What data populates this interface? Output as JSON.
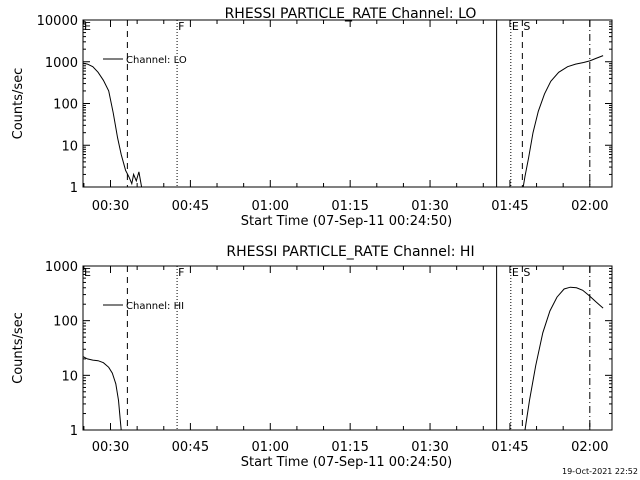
{
  "footer": {
    "timestamp": "19-Oct-2021 22:52"
  },
  "chart_data": [
    {
      "type": "line",
      "title": "RHESSI PARTICLE_RATE Channel: LO",
      "xlabel": "Start Time (07-Sep-11 00:24:50)",
      "ylabel": "Counts/sec",
      "yscale": "log",
      "ylim": [
        1,
        10000
      ],
      "xlim": [
        "00:24:50",
        "02:04:10"
      ],
      "xticks": [
        "00:30",
        "00:45",
        "01:00",
        "01:15",
        "01:30",
        "01:45",
        "02:00"
      ],
      "yticks": [
        "1",
        "10",
        "100",
        "1000",
        "10000"
      ],
      "legend": {
        "label": "Channel: LO",
        "placement": "top-left"
      },
      "markers": [
        {
          "label": "E",
          "time": "00:24:50",
          "style": "dashed"
        },
        {
          "label": "",
          "time": "00:33:10",
          "style": "dashed"
        },
        {
          "label": "F",
          "time": "00:42:30",
          "style": "dotted"
        },
        {
          "label": "",
          "time": "01:42:30",
          "style": "solid"
        },
        {
          "label": "E",
          "time": "01:45:10",
          "style": "dotted"
        },
        {
          "label": "S",
          "time": "01:47:20",
          "style": "dashed"
        },
        {
          "label": "",
          "time": "02:00:00",
          "style": "dashdot"
        }
      ],
      "series": [
        {
          "segments": [
            [
              [
                "00:24:50",
                930
              ],
              [
                "00:25:40",
                880
              ],
              [
                "00:26:40",
                760
              ],
              [
                "00:27:40",
                560
              ],
              [
                "00:28:40",
                360
              ],
              [
                "00:29:40",
                200
              ],
              [
                "00:30:30",
                60
              ],
              [
                "00:31:20",
                15
              ],
              [
                "00:32:00",
                6
              ],
              [
                "00:32:50",
                2.5
              ],
              [
                "00:33:30",
                1.7
              ],
              [
                "00:34:00",
                1.2
              ],
              [
                "00:34:20",
                2.0
              ],
              [
                "00:34:50",
                1.4
              ],
              [
                "00:35:20",
                2.3
              ],
              [
                "00:35:50",
                1.0
              ]
            ],
            [
              [
                "01:47:30",
                1.0
              ],
              [
                "01:47:50",
                1.8
              ],
              [
                "01:48:30",
                5
              ],
              [
                "01:49:20",
                20
              ],
              [
                "01:50:20",
                65
              ],
              [
                "01:51:30",
                170
              ],
              [
                "01:52:40",
                340
              ],
              [
                "01:54:10",
                560
              ],
              [
                "01:55:50",
                760
              ],
              [
                "01:57:20",
                880
              ],
              [
                "01:58:50",
                960
              ],
              [
                "02:00:00",
                1050
              ],
              [
                "02:01:10",
                1200
              ],
              [
                "02:02:30",
                1400
              ]
            ]
          ]
        }
      ]
    },
    {
      "type": "line",
      "title": "RHESSI PARTICLE_RATE Channel: HI",
      "xlabel": "Start Time (07-Sep-11 00:24:50)",
      "ylabel": "Counts/sec",
      "yscale": "log",
      "ylim": [
        1,
        1000
      ],
      "xlim": [
        "00:24:50",
        "02:04:10"
      ],
      "xticks": [
        "00:30",
        "00:45",
        "01:00",
        "01:15",
        "01:30",
        "01:45",
        "02:00"
      ],
      "yticks": [
        "1",
        "10",
        "100",
        "1000"
      ],
      "legend": {
        "label": "Channel: HI",
        "placement": "top-left"
      },
      "markers": [
        {
          "label": "E",
          "time": "00:24:50",
          "style": "dashed"
        },
        {
          "label": "",
          "time": "00:33:10",
          "style": "dashed"
        },
        {
          "label": "F",
          "time": "00:42:30",
          "style": "dotted"
        },
        {
          "label": "",
          "time": "01:42:30",
          "style": "solid"
        },
        {
          "label": "E",
          "time": "01:45:10",
          "style": "dotted"
        },
        {
          "label": "S",
          "time": "01:47:20",
          "style": "dashed"
        },
        {
          "label": "",
          "time": "02:00:00",
          "style": "dashdot"
        }
      ],
      "series": [
        {
          "segments": [
            [
              [
                "00:24:50",
                22
              ],
              [
                "00:25:40",
                20
              ],
              [
                "00:26:40",
                19
              ],
              [
                "00:27:40",
                18.5
              ],
              [
                "00:28:40",
                17
              ],
              [
                "00:29:40",
                14
              ],
              [
                "00:30:20",
                11
              ],
              [
                "00:31:00",
                7
              ],
              [
                "00:31:30",
                3.5
              ],
              [
                "00:31:50",
                1.5
              ],
              [
                "00:32:00",
                1.0
              ]
            ],
            [
              [
                "01:47:50",
                1.0
              ],
              [
                "01:48:40",
                3.5
              ],
              [
                "01:49:50",
                15
              ],
              [
                "01:51:10",
                60
              ],
              [
                "01:52:30",
                150
              ],
              [
                "01:53:50",
                270
              ],
              [
                "01:55:10",
                380
              ],
              [
                "01:56:20",
                410
              ],
              [
                "01:57:30",
                400
              ],
              [
                "01:58:40",
                360
              ],
              [
                "01:59:50",
                290
              ],
              [
                "02:01:10",
                220
              ],
              [
                "02:02:30",
                170
              ]
            ]
          ]
        }
      ]
    }
  ]
}
